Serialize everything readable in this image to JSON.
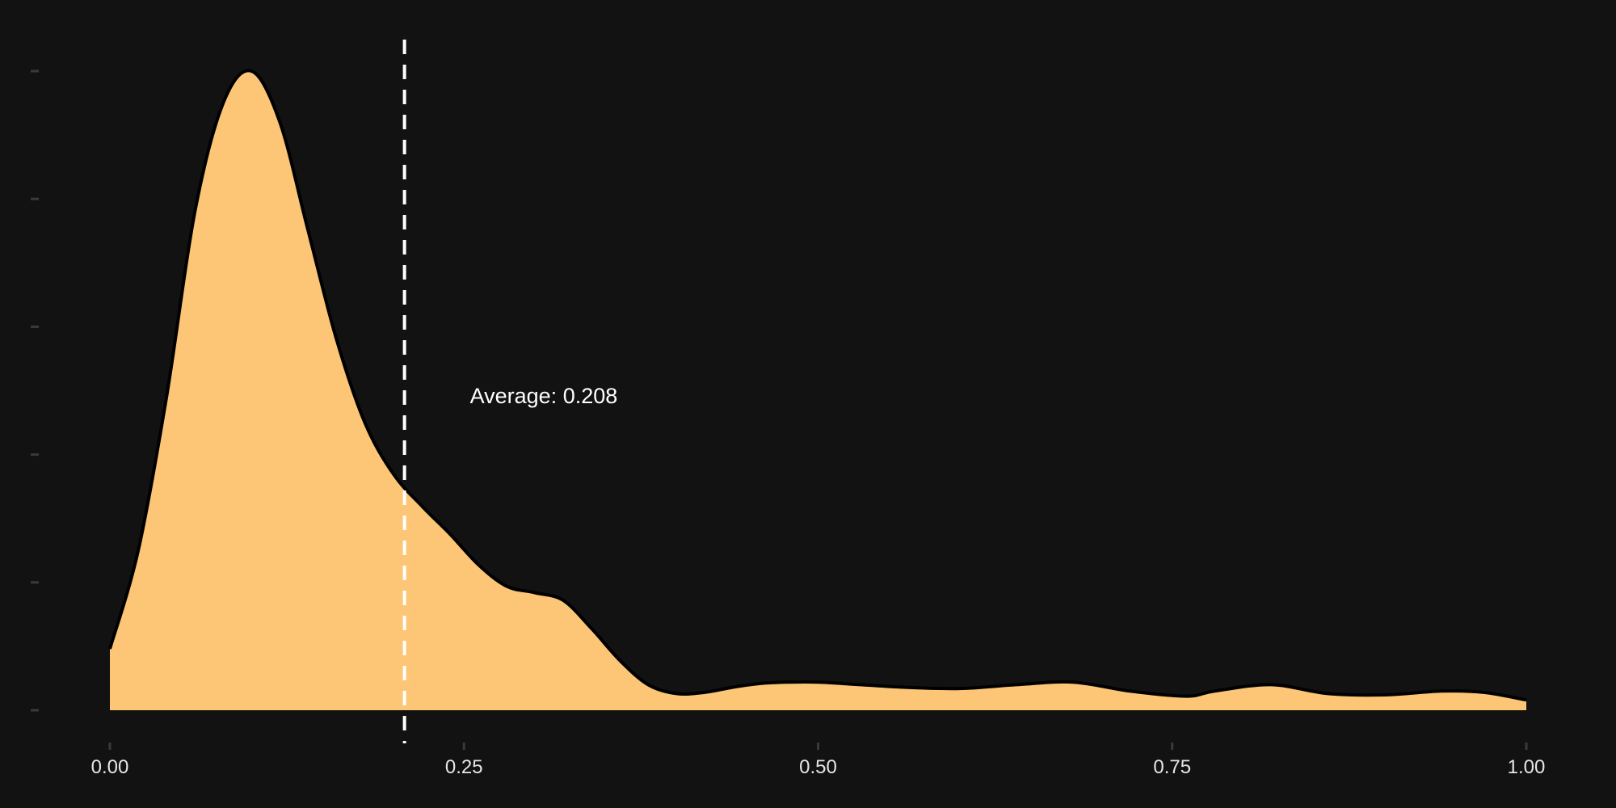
{
  "chart_data": {
    "type": "area",
    "title": "",
    "xlabel": "",
    "ylabel": "",
    "xlim": [
      0,
      1
    ],
    "ylim": [
      0,
      5
    ],
    "x_ticks": [
      0,
      0.25,
      0.5,
      0.75,
      1
    ],
    "x_tick_labels": [
      "0.00",
      "0.25",
      "0.50",
      "0.75",
      "1.00"
    ],
    "y_ticks": [
      0,
      1,
      2,
      3,
      4,
      5
    ],
    "y_tick_labels_visible": false,
    "grid": false,
    "legend": "none",
    "series": [
      {
        "x": [
          0.0,
          0.02,
          0.04,
          0.06,
          0.08,
          0.1,
          0.12,
          0.14,
          0.16,
          0.18,
          0.2,
          0.22,
          0.24,
          0.26,
          0.28,
          0.3,
          0.32,
          0.34,
          0.36,
          0.38,
          0.4,
          0.42,
          0.44,
          0.46,
          0.48,
          0.5,
          0.53,
          0.56,
          0.6,
          0.64,
          0.68,
          0.72,
          0.76,
          0.78,
          0.82,
          0.86,
          0.9,
          0.94,
          0.97,
          1.0
        ],
        "y": [
          0.48,
          1.25,
          2.45,
          3.9,
          4.75,
          5.0,
          4.6,
          3.75,
          2.9,
          2.25,
          1.85,
          1.6,
          1.38,
          1.14,
          0.97,
          0.92,
          0.86,
          0.64,
          0.39,
          0.2,
          0.13,
          0.14,
          0.18,
          0.21,
          0.22,
          0.22,
          0.2,
          0.18,
          0.17,
          0.2,
          0.22,
          0.15,
          0.11,
          0.15,
          0.2,
          0.13,
          0.12,
          0.15,
          0.14,
          0.08
        ]
      }
    ],
    "fill_color": "#fcc676",
    "line_color": "#000000",
    "mean": 0.208,
    "mean_label": "Average: 0.208",
    "mean_line_color": "#ffffff"
  }
}
